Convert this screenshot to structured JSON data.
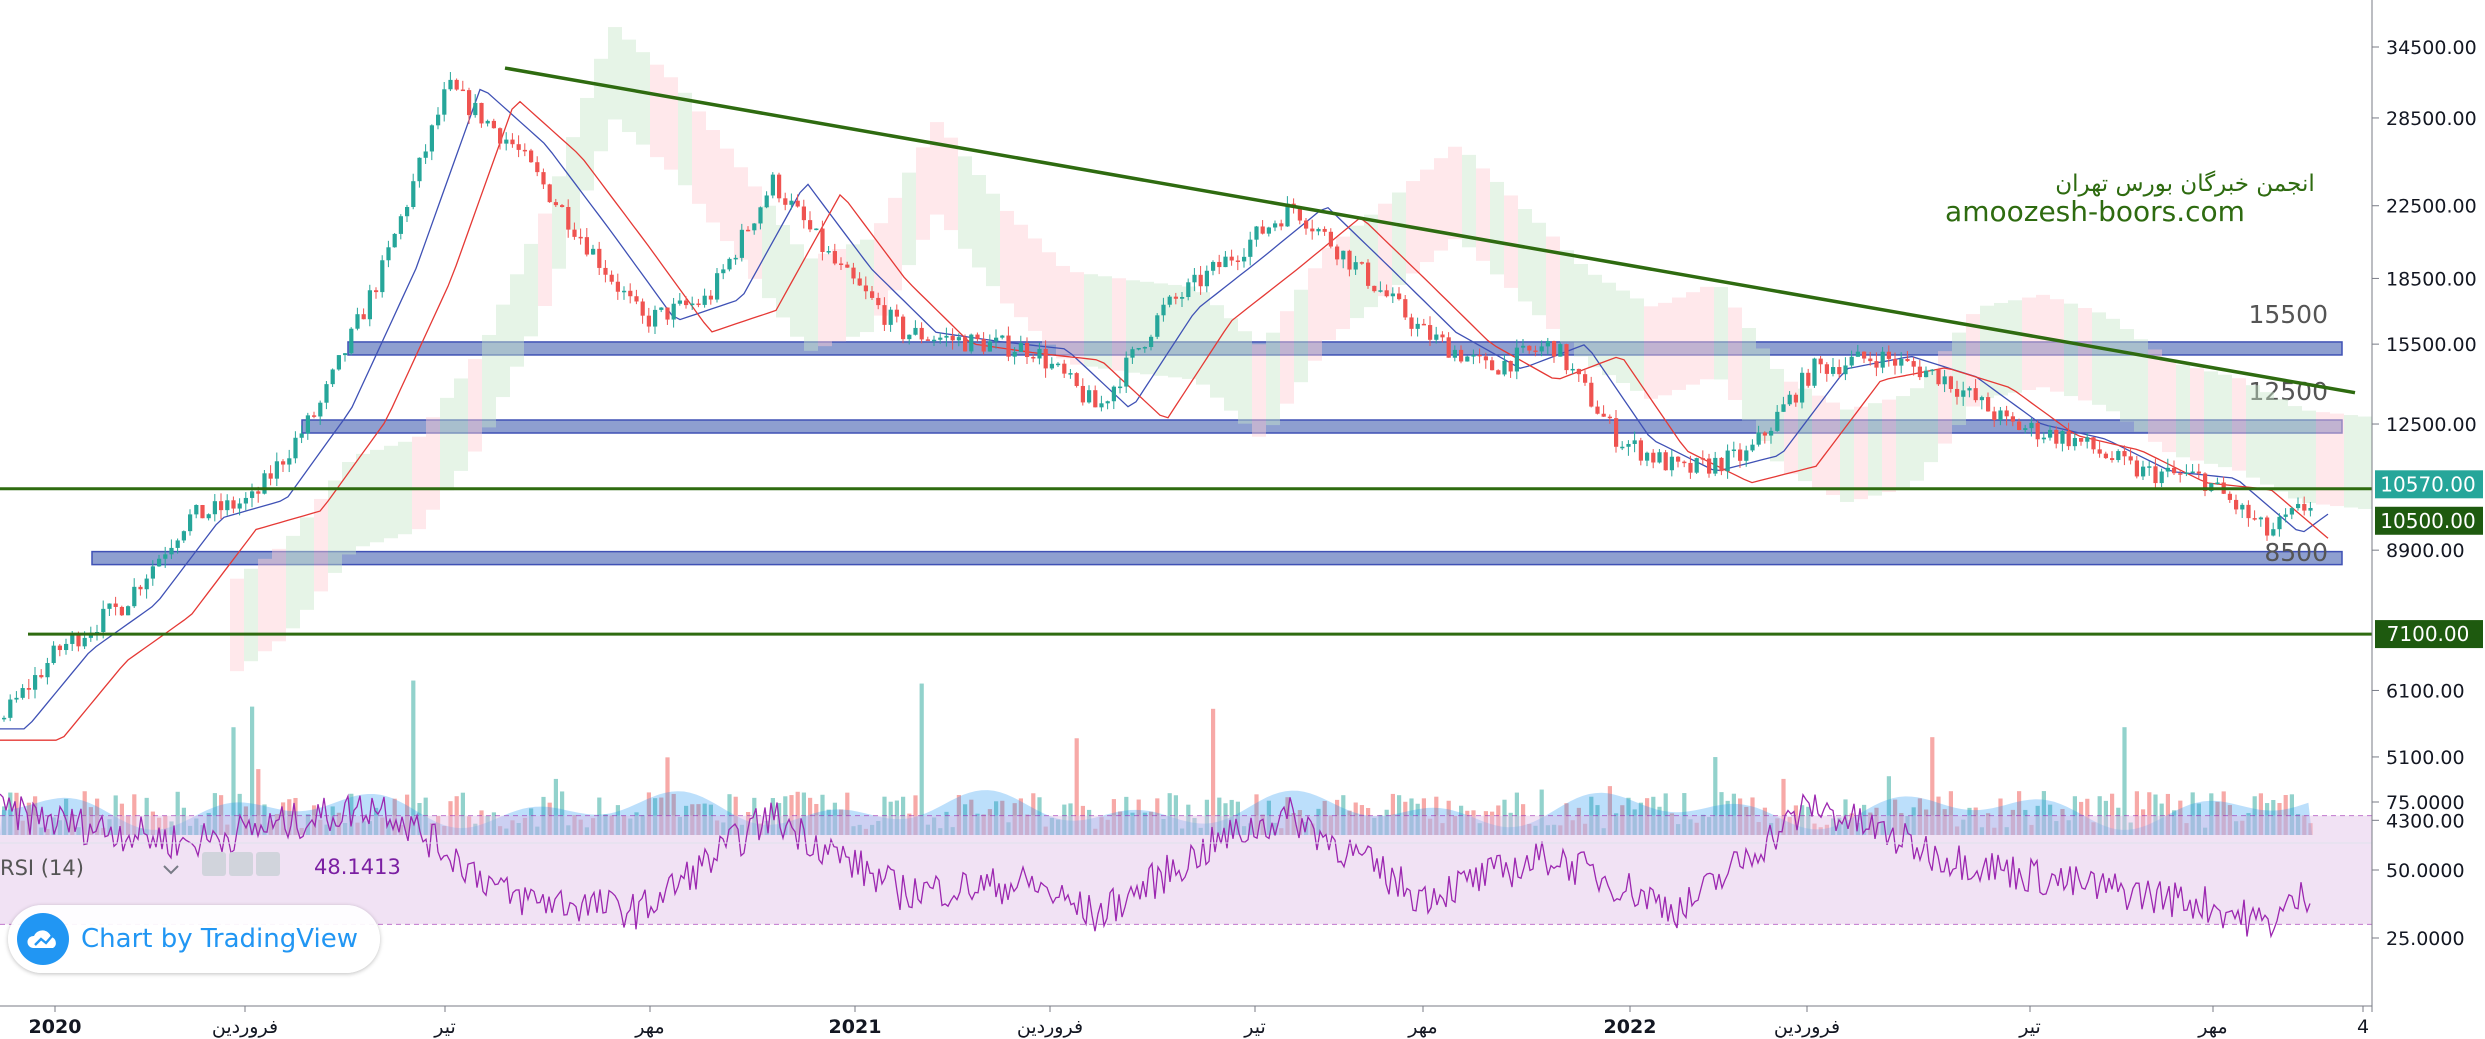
{
  "chart_data": {
    "type": "candlestick",
    "title": "",
    "watermark": {
      "line1": "انجمن خبرگان بورس تهران",
      "line2": "amoozesh-boors.com"
    },
    "y_axis": {
      "scale": "log",
      "range": [
        3900,
        37000
      ],
      "ticks": [
        "34500.00",
        "28500.00",
        "22500.00",
        "18500.00",
        "15500.00",
        "12500.00",
        "8900.00",
        "6100.00",
        "5100.00",
        "4300.00"
      ],
      "tick_values": [
        34500,
        28500,
        22500,
        18500,
        15500,
        12500,
        8900,
        6100,
        5100,
        4300
      ]
    },
    "price_badges": [
      {
        "label": "10570.00",
        "value": 10570,
        "color": "#26a69a"
      },
      {
        "label": "10500.00",
        "value": 10500,
        "color": "#1e5a0f"
      },
      {
        "label": "7100.00",
        "value": 7100,
        "color": "#1e5a0f"
      }
    ],
    "level_labels": [
      "15500",
      "12500",
      "8500"
    ],
    "support_resistance_zones": [
      {
        "value": 15300,
        "label": "15500",
        "from": "2020-05",
        "to": "2023-02"
      },
      {
        "value": 12400,
        "label": "12500",
        "from": "2020-04",
        "to": "2023-02"
      },
      {
        "value": 8700,
        "label": "8500",
        "from": "2020-01",
        "to": "2023-02"
      }
    ],
    "horizontal_lines": [
      {
        "value": 10500,
        "color": "#2e6b10"
      },
      {
        "value": 7100,
        "color": "#2e6b10"
      }
    ],
    "trendline": {
      "from": {
        "date": "2020-07",
        "value": 32600
      },
      "to": {
        "date": "2023-02",
        "value": 13600
      },
      "color": "#2e6b10"
    },
    "price_path": [
      {
        "date": "2019-12",
        "close": 5500
      },
      {
        "date": "2020-01",
        "close": 6800
      },
      {
        "date": "2020-02",
        "close": 7700
      },
      {
        "date": "2020-03",
        "close": 9700
      },
      {
        "date": "2020-04",
        "close": 10200
      },
      {
        "date": "2020-05",
        "close": 13000
      },
      {
        "date": "2020-06",
        "close": 19000
      },
      {
        "date": "2020-07",
        "close": 31000
      },
      {
        "date": "2020-08",
        "close": 26500
      },
      {
        "date": "2020-09",
        "close": 21000
      },
      {
        "date": "2020-10",
        "close": 16500
      },
      {
        "date": "2020-11",
        "close": 17500
      },
      {
        "date": "2020-12",
        "close": 24000
      },
      {
        "date": "2021-01",
        "close": 19000
      },
      {
        "date": "2021-02",
        "close": 16000
      },
      {
        "date": "2021-03",
        "close": 15600
      },
      {
        "date": "2021-04",
        "close": 15300
      },
      {
        "date": "2021-05",
        "close": 13000
      },
      {
        "date": "2021-06",
        "close": 17000
      },
      {
        "date": "2021-07",
        "close": 19500
      },
      {
        "date": "2021-08",
        "close": 22500
      },
      {
        "date": "2021-09",
        "close": 19000
      },
      {
        "date": "2021-10",
        "close": 16000
      },
      {
        "date": "2021-11",
        "close": 14500
      },
      {
        "date": "2021-12",
        "close": 15500
      },
      {
        "date": "2022-01",
        "close": 12000
      },
      {
        "date": "2022-02",
        "close": 11000
      },
      {
        "date": "2022-03",
        "close": 11500
      },
      {
        "date": "2022-04",
        "close": 14500
      },
      {
        "date": "2022-05",
        "close": 15000
      },
      {
        "date": "2022-06",
        "close": 14200
      },
      {
        "date": "2022-07",
        "close": 12500
      },
      {
        "date": "2022-08",
        "close": 12000
      },
      {
        "date": "2022-09",
        "close": 11000
      },
      {
        "date": "2022-10",
        "close": 10800
      },
      {
        "date": "2022-11",
        "close": 9300
      },
      {
        "date": "2022-12",
        "close": 10570
      }
    ],
    "x_axis": {
      "ticks": [
        {
          "label": "2020",
          "date": "2020-01",
          "bold": true
        },
        {
          "label": "فروردین",
          "date": "2020-04",
          "bold": false
        },
        {
          "label": "تیر",
          "date": "2020-07",
          "bold": false
        },
        {
          "label": "مهر",
          "date": "2020-10",
          "bold": false
        },
        {
          "label": "2021",
          "date": "2021-01",
          "bold": true
        },
        {
          "label": "فروردین",
          "date": "2021-04",
          "bold": false
        },
        {
          "label": "تیر",
          "date": "2021-07",
          "bold": false
        },
        {
          "label": "مهر",
          "date": "2021-10",
          "bold": false
        },
        {
          "label": "2022",
          "date": "2022-01",
          "bold": true
        },
        {
          "label": "فروردین",
          "date": "2022-04",
          "bold": false
        },
        {
          "label": "تیر",
          "date": "2022-07",
          "bold": false
        },
        {
          "label": "مهر",
          "date": "2022-10",
          "bold": false
        },
        {
          "label": "4",
          "date": "2023-01",
          "bold": false
        }
      ]
    },
    "volume": {
      "shown": true,
      "color_up": "#26a69a",
      "color_down": "#ef5350"
    },
    "rsi": {
      "label": "RSI (14)",
      "value": "48.1413",
      "period": 14,
      "ticks": [
        "75.0000",
        "50.0000",
        "25.0000"
      ],
      "tick_values": [
        75,
        50,
        25
      ],
      "band": [
        30,
        70
      ],
      "path": [
        {
          "date": "2019-12",
          "v": 72
        },
        {
          "date": "2020-03",
          "v": 60
        },
        {
          "date": "2020-06",
          "v": 74
        },
        {
          "date": "2020-08",
          "v": 40
        },
        {
          "date": "2020-10",
          "v": 35
        },
        {
          "date": "2020-12",
          "v": 70
        },
        {
          "date": "2021-02",
          "v": 42
        },
        {
          "date": "2021-04",
          "v": 45
        },
        {
          "date": "2021-05",
          "v": 33
        },
        {
          "date": "2021-07",
          "v": 62
        },
        {
          "date": "2021-08",
          "v": 70
        },
        {
          "date": "2021-10",
          "v": 40
        },
        {
          "date": "2021-12",
          "v": 55
        },
        {
          "date": "2022-02",
          "v": 35
        },
        {
          "date": "2022-04",
          "v": 74
        },
        {
          "date": "2022-06",
          "v": 55
        },
        {
          "date": "2022-08",
          "v": 45
        },
        {
          "date": "2022-10",
          "v": 38
        },
        {
          "date": "2022-11",
          "v": 30
        },
        {
          "date": "2022-12",
          "v": 48
        }
      ]
    },
    "grid": false,
    "legend": "none"
  },
  "branding": {
    "logo_text": "Chart by TradingView",
    "logo_icon": "tradingview-cloud-icon"
  }
}
